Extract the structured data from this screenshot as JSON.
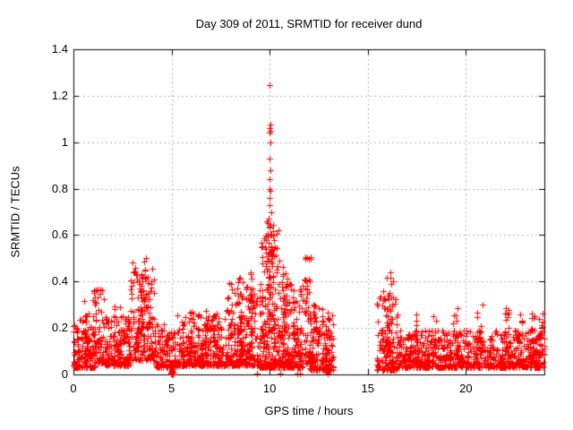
{
  "title": "Day 309 of 2011, SRMTID for receiver dund",
  "colors": {
    "marker": "#ff0000",
    "grid": "#b5b5b5",
    "axis": "#000000",
    "background": "#ffffff",
    "text": "#000000"
  },
  "chart_data": {
    "type": "scatter",
    "marker": "plus",
    "title": "Day 309 of 2011, SRMTID for receiver dund",
    "xlabel": "GPS time / hours",
    "ylabel": "SRMTID / TECUs",
    "xlim": [
      0,
      24
    ],
    "ylim": [
      0,
      1.4
    ],
    "x_ticks": [
      0,
      5,
      10,
      15,
      20
    ],
    "x_tick_labels": [
      "0",
      "5",
      "10",
      "15",
      "20"
    ],
    "y_ticks": [
      0,
      0.2,
      0.4,
      0.6,
      0.8,
      1.0,
      1.2,
      1.4
    ],
    "y_tick_labels": [
      "0",
      "0.2",
      "0.4",
      "0.6",
      "0.8",
      "1",
      "1.2",
      "1.4"
    ],
    "grid": true,
    "legend": "none",
    "series_name": "SRMTID",
    "summary": "Dense band of values 0.03-0.2 TECUs across the day; bursts to ~0.37 near hour 1.2, ~0.5 near hours 3-4, strong activity hours 8-13 peaking at ~1.25 TECUs at hour 10, secondary spike ~0.52 at hour 11.9; no data between hours ~13.2 and ~15.45; burst to ~0.46 at hour 16; steady band 0.05-0.2 until hour 24.",
    "clusters": [
      {
        "t0": 0.0,
        "t1": 1.1,
        "n": 150,
        "ymin": 0.03,
        "ymax": 0.24,
        "exp": 2.2
      },
      {
        "t0": 0.55,
        "t1": 0.9,
        "n": 18,
        "ymin": 0.1,
        "ymax": 0.35,
        "exp": 1.6
      },
      {
        "t0": 1.0,
        "t1": 1.55,
        "n": 70,
        "ymin": 0.05,
        "ymax": 0.38,
        "exp": 1.9
      },
      {
        "t0": 1.5,
        "t1": 2.9,
        "n": 180,
        "ymin": 0.04,
        "ymax": 0.26,
        "exp": 2.4
      },
      {
        "t0": 2.05,
        "t1": 2.45,
        "n": 18,
        "ymin": 0.08,
        "ymax": 0.31,
        "exp": 1.7
      },
      {
        "t0": 2.9,
        "t1": 4.15,
        "n": 160,
        "ymin": 0.06,
        "ymax": 0.5,
        "exp": 1.9
      },
      {
        "t0": 3.2,
        "t1": 3.8,
        "n": 30,
        "ymin": 0.15,
        "ymax": 0.47,
        "exp": 1.4
      },
      {
        "t0": 4.1,
        "t1": 5.05,
        "n": 100,
        "ymin": 0.03,
        "ymax": 0.22,
        "exp": 2.1
      },
      {
        "t0": 4.95,
        "t1": 5.1,
        "n": 12,
        "ymin": 0.0,
        "ymax": 0.05,
        "exp": 1.5
      },
      {
        "t0": 5.05,
        "t1": 7.8,
        "n": 310,
        "ymin": 0.04,
        "ymax": 0.26,
        "exp": 2.5
      },
      {
        "t0": 5.8,
        "t1": 6.15,
        "n": 16,
        "ymin": 0.08,
        "ymax": 0.28,
        "exp": 1.6
      },
      {
        "t0": 6.5,
        "t1": 6.85,
        "n": 16,
        "ymin": 0.08,
        "ymax": 0.3,
        "exp": 1.6
      },
      {
        "t0": 7.1,
        "t1": 7.45,
        "n": 14,
        "ymin": 0.08,
        "ymax": 0.3,
        "exp": 1.6
      },
      {
        "t0": 7.8,
        "t1": 9.45,
        "n": 240,
        "ymin": 0.04,
        "ymax": 0.4,
        "exp": 2.4
      },
      {
        "t0": 8.3,
        "t1": 8.65,
        "n": 20,
        "ymin": 0.1,
        "ymax": 0.45,
        "exp": 1.5
      },
      {
        "t0": 8.8,
        "t1": 9.15,
        "n": 20,
        "ymin": 0.1,
        "ymax": 0.48,
        "exp": 1.5
      },
      {
        "t0": 9.45,
        "t1": 10.5,
        "n": 210,
        "ymin": 0.03,
        "ymax": 0.66,
        "exp": 2.1
      },
      {
        "t0": 9.85,
        "t1": 10.25,
        "n": 35,
        "ymin": 0.15,
        "ymax": 0.7,
        "exp": 1.3
      },
      {
        "t0": 10.45,
        "t1": 11.7,
        "n": 210,
        "ymin": 0.03,
        "ymax": 0.4,
        "exp": 2.3
      },
      {
        "t0": 10.6,
        "t1": 10.9,
        "n": 14,
        "ymin": 0.1,
        "ymax": 0.47,
        "exp": 1.5
      },
      {
        "t0": 11.75,
        "t1": 12.1,
        "n": 55,
        "ymin": 0.05,
        "ymax": 0.52,
        "exp": 1.9
      },
      {
        "t0": 12.05,
        "t1": 13.25,
        "n": 170,
        "ymin": 0.02,
        "ymax": 0.3,
        "exp": 2.3
      },
      {
        "t0": 12.8,
        "t1": 13.05,
        "n": 12,
        "ymin": 0.06,
        "ymax": 0.27,
        "exp": 1.5
      },
      {
        "t0": 15.45,
        "t1": 16.5,
        "n": 140,
        "ymin": 0.02,
        "ymax": 0.4,
        "exp": 2.6
      },
      {
        "t0": 15.95,
        "t1": 16.3,
        "n": 28,
        "ymin": 0.1,
        "ymax": 0.46,
        "exp": 1.5
      },
      {
        "t0": 16.5,
        "t1": 24.0,
        "n": 780,
        "ymin": 0.03,
        "ymax": 0.19,
        "exp": 2.2
      },
      {
        "t0": 17.2,
        "t1": 17.5,
        "n": 14,
        "ymin": 0.08,
        "ymax": 0.26,
        "exp": 1.6
      },
      {
        "t0": 18.2,
        "t1": 18.5,
        "n": 14,
        "ymin": 0.08,
        "ymax": 0.28,
        "exp": 1.6
      },
      {
        "t0": 19.3,
        "t1": 19.65,
        "n": 16,
        "ymin": 0.08,
        "ymax": 0.3,
        "exp": 1.6
      },
      {
        "t0": 20.5,
        "t1": 20.85,
        "n": 16,
        "ymin": 0.08,
        "ymax": 0.3,
        "exp": 1.6
      },
      {
        "t0": 21.9,
        "t1": 22.2,
        "n": 14,
        "ymin": 0.08,
        "ymax": 0.29,
        "exp": 1.6
      },
      {
        "t0": 22.6,
        "t1": 22.95,
        "n": 12,
        "ymin": 0.08,
        "ymax": 0.26,
        "exp": 1.6
      },
      {
        "t0": 23.2,
        "t1": 23.55,
        "n": 12,
        "ymin": 0.08,
        "ymax": 0.28,
        "exp": 1.6
      },
      {
        "t0": 23.7,
        "t1": 24.0,
        "n": 14,
        "ymin": 0.08,
        "ymax": 0.28,
        "exp": 1.6
      }
    ],
    "peak_points": [
      [
        9.98,
        1.245
      ],
      [
        10.03,
        1.075
      ],
      [
        10.0,
        1.06
      ],
      [
        10.05,
        1.05
      ],
      [
        9.99,
        1.04
      ],
      [
        10.02,
        1.0
      ],
      [
        10.0,
        0.93
      ],
      [
        10.04,
        0.88
      ],
      [
        9.99,
        0.84
      ],
      [
        10.01,
        0.8
      ],
      [
        10.05,
        0.79
      ],
      [
        9.97,
        0.76
      ],
      [
        10.0,
        0.73
      ],
      [
        10.08,
        0.7
      ],
      [
        9.93,
        0.67
      ],
      [
        10.02,
        0.645
      ],
      [
        11.4,
        0.005
      ],
      [
        11.55,
        0.005
      ],
      [
        9.35,
        0.005
      ],
      [
        10.55,
        0.005
      ],
      [
        12.95,
        0.005
      ],
      [
        5.0,
        0.01
      ]
    ]
  }
}
